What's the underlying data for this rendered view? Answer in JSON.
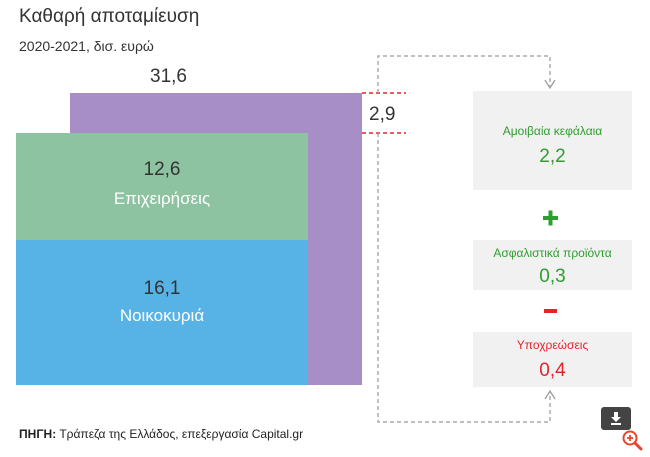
{
  "chart_data": {
    "type": "table",
    "title": "Καθαρή αποταμίευση",
    "subtitle": "2020-2021, δισ. ευρώ",
    "total": {
      "value": "31,6"
    },
    "segments": [
      {
        "label": "Επιχειρήσεις",
        "value": "12,6",
        "color": "#8dc3a0"
      },
      {
        "label": "Νοικοκυριά",
        "value": "16,1",
        "color": "#57b3e5"
      }
    ],
    "difference": {
      "value": "2,9",
      "color": "#a78ec7"
    },
    "breakdown": [
      {
        "label": "Αμοιβαία κεφάλαια",
        "value": "2,2",
        "color": "#2e9e2e"
      },
      {
        "operator": "+",
        "label": "Ασφαλιστικά προϊόντα",
        "value": "0,3",
        "color": "#2e9e2e"
      },
      {
        "operator": "-",
        "label": "Υποχρεώσεις",
        "value": "0,4",
        "color": "#e8222b"
      }
    ]
  },
  "source": {
    "prefix": "ΠΗΓΗ:",
    "text": " Τράπεζα της Ελλάδος, επεξεργασία Capital.gr"
  },
  "icons": {
    "download": "download-icon",
    "zoom": "zoom-in-icon"
  }
}
